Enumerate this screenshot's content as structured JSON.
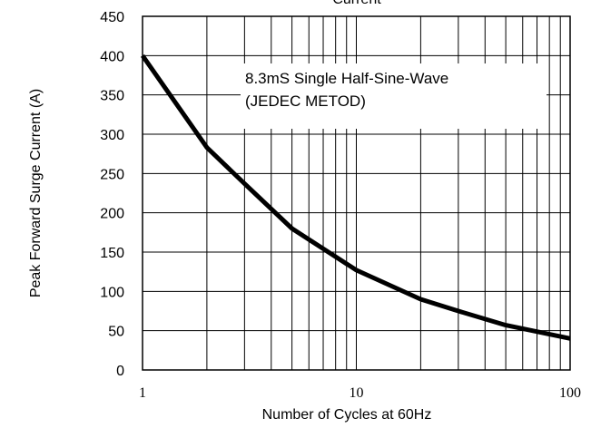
{
  "chart_data": {
    "type": "line",
    "title": "Current",
    "xlabel": "Number of Cycles at 60Hz",
    "ylabel": "Peak Forward Surge Current (A)",
    "x_scale": "log",
    "xlim": [
      1,
      100
    ],
    "ylim": [
      0,
      450
    ],
    "x_ticks": [
      "1",
      "10",
      "100"
    ],
    "y_ticks": [
      "0",
      "50",
      "100",
      "150",
      "200",
      "250",
      "300",
      "350",
      "400",
      "450"
    ],
    "grid": true,
    "annotation": [
      "8.3mS Single Half-Sine-Wave",
      "(JEDEC METOD)"
    ],
    "series": [
      {
        "x": [
          1,
          2,
          3,
          5,
          10,
          20,
          30,
          50,
          100
        ],
        "y": [
          400,
          283,
          237,
          180,
          127,
          90,
          75,
          57,
          40
        ]
      }
    ],
    "line_color": "#000000"
  }
}
